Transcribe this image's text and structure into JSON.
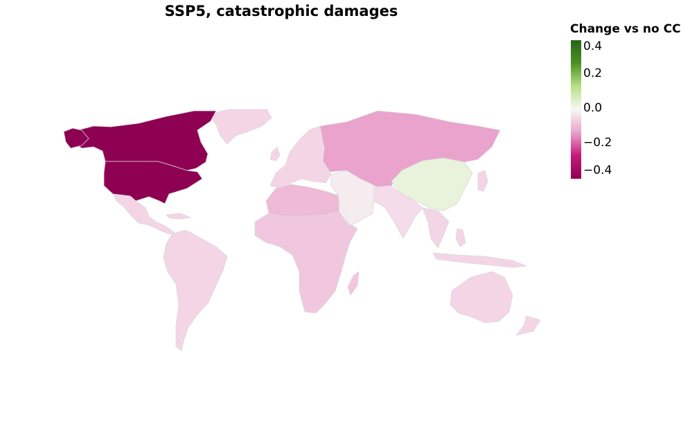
{
  "title": "SSP5, catastrophic damages",
  "legend": {
    "title": "Change vs no CC",
    "ticks": [
      "0.4",
      "0.2",
      "0.0",
      "−0.2",
      "−0.4"
    ],
    "range": [
      -0.45,
      0.45
    ],
    "scale": "PiYG diverging",
    "colors": [
      "#8e0152",
      "#c51b7d",
      "#e9a3c9",
      "#f7f7f7",
      "#b8e186",
      "#4d9221",
      "#276419"
    ]
  },
  "regions": [
    {
      "name": "United States",
      "value": -0.42,
      "color": "#8e0152"
    },
    {
      "name": "Canada",
      "value": -0.42,
      "color": "#8e0152"
    },
    {
      "name": "Greenland",
      "value": -0.05,
      "color": "#f4d5e6"
    },
    {
      "name": "Mexico & Central America",
      "value": -0.06,
      "color": "#f4d5e6"
    },
    {
      "name": "South America",
      "value": -0.07,
      "color": "#f4d5e6"
    },
    {
      "name": "Europe",
      "value": -0.07,
      "color": "#f4d5e6"
    },
    {
      "name": "Russia & Central Asia",
      "value": -0.17,
      "color": "#e9a3cc"
    },
    {
      "name": "North Africa",
      "value": -0.14,
      "color": "#efb9d8"
    },
    {
      "name": "Sub-Saharan Africa",
      "value": -0.11,
      "color": "#f1c7df"
    },
    {
      "name": "Middle East",
      "value": -0.02,
      "color": "#f5ecef"
    },
    {
      "name": "South Asia",
      "value": -0.06,
      "color": "#f5dcea"
    },
    {
      "name": "China",
      "value": 0.04,
      "color": "#e9f2da"
    },
    {
      "name": "Southeast Asia",
      "value": -0.07,
      "color": "#f4d5e6"
    },
    {
      "name": "Japan",
      "value": -0.05,
      "color": "#f4d5e6"
    },
    {
      "name": "Oceania",
      "value": -0.06,
      "color": "#f4d5e6"
    }
  ]
}
